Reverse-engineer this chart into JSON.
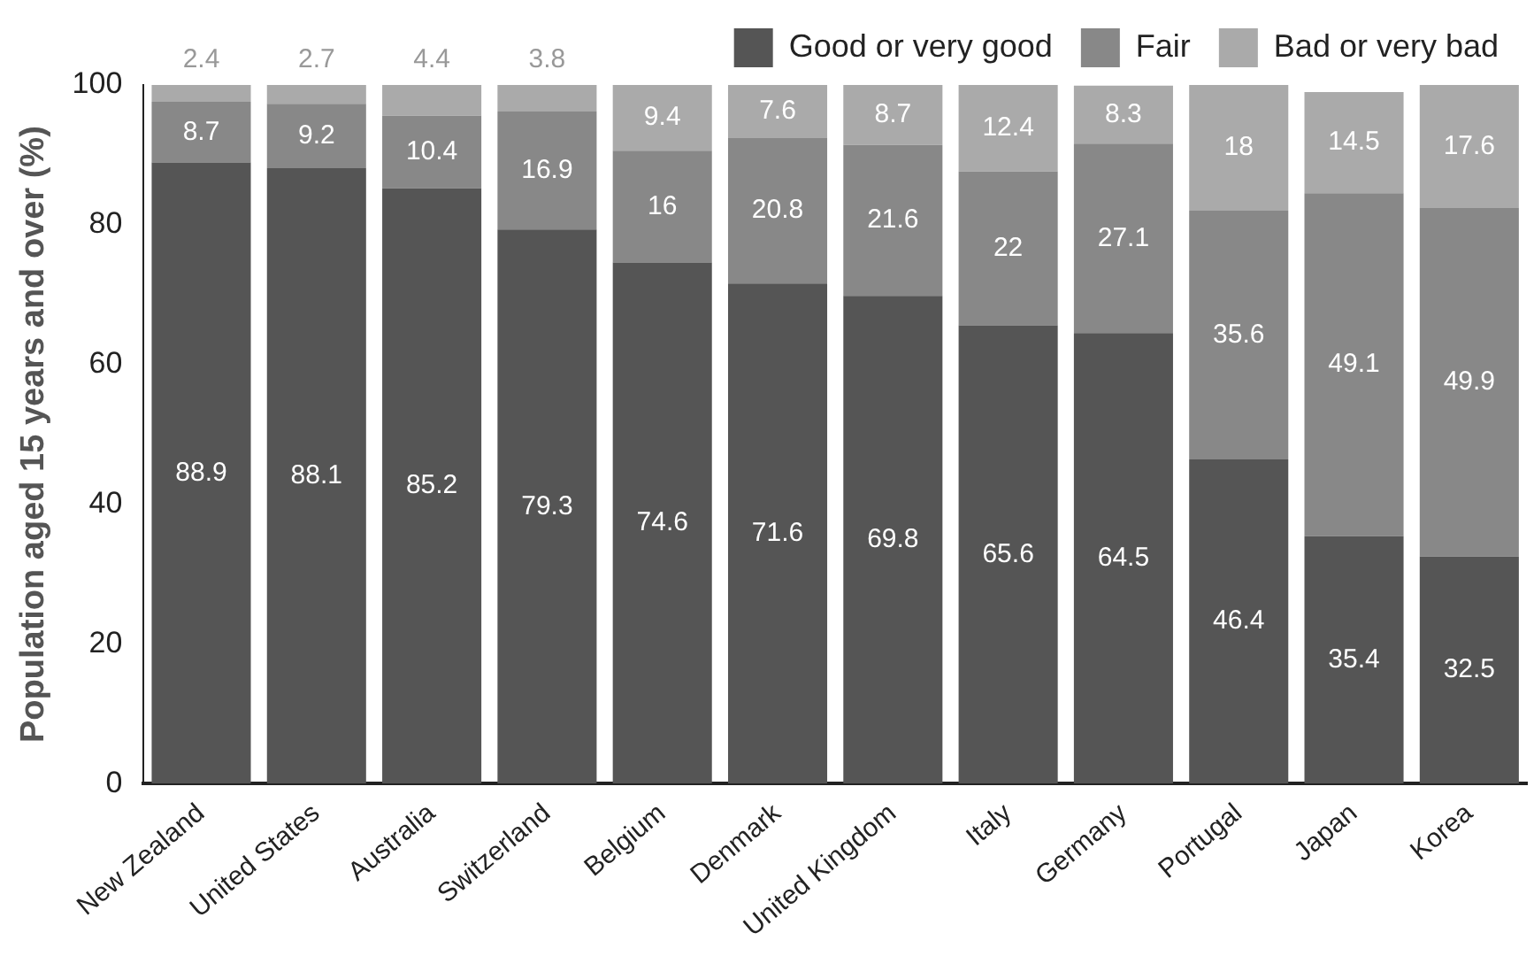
{
  "chart_data": {
    "type": "bar",
    "stacked": true,
    "ylabel": "Population aged 15 years and over (%)",
    "categories": [
      "New Zealand",
      "United States",
      "Australia",
      "Switzerland",
      "Belgium",
      "Denmark",
      "United Kingdom",
      "Italy",
      "Germany",
      "Portugal",
      "Japan",
      "Korea"
    ],
    "series": [
      {
        "name": "Good or very good",
        "color": "#555555",
        "values": [
          88.9,
          88.1,
          85.2,
          79.3,
          74.6,
          71.6,
          69.8,
          65.6,
          64.5,
          46.4,
          35.4,
          32.5
        ]
      },
      {
        "name": "Fair",
        "color": "#888888",
        "values": [
          8.7,
          9.2,
          10.4,
          16.9,
          16,
          20.8,
          21.6,
          22,
          27.1,
          35.6,
          49.1,
          49.9
        ]
      },
      {
        "name": "Bad or very bad",
        "color": "#aaaaaa",
        "values": [
          2.4,
          2.7,
          4.4,
          3.8,
          9.4,
          7.6,
          8.7,
          12.4,
          8.3,
          18,
          14.5,
          17.6
        ]
      }
    ],
    "ylim": [
      0,
      100
    ],
    "yticks": [
      0,
      20,
      40,
      60,
      80,
      100
    ],
    "grid": false,
    "legend": "top right",
    "data_labels": true
  }
}
